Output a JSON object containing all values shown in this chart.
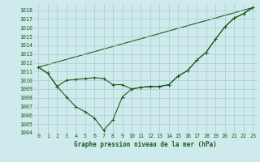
{
  "title": "Graphe pression niveau de la mer (hPa)",
  "background_color": "#ceeaec",
  "grid_color": "#a8ccce",
  "line_color": "#1a5c1a",
  "ylim": [
    1004,
    1018.8
  ],
  "xlim": [
    -0.5,
    23.5
  ],
  "yticks": [
    1004,
    1005,
    1006,
    1007,
    1008,
    1009,
    1010,
    1011,
    1012,
    1013,
    1014,
    1015,
    1016,
    1017,
    1018
  ],
  "xticks": [
    0,
    1,
    2,
    3,
    4,
    5,
    6,
    7,
    8,
    9,
    10,
    11,
    12,
    13,
    14,
    15,
    16,
    17,
    18,
    19,
    20,
    21,
    22,
    23
  ],
  "series1_x": [
    0,
    1,
    2,
    3,
    4,
    5,
    6,
    7,
    8,
    9,
    10,
    11,
    12,
    13,
    14,
    15,
    16,
    17,
    18,
    19,
    20,
    21,
    22,
    23
  ],
  "series1_y": [
    1011.5,
    1010.8,
    1009.3,
    1010.0,
    1010.1,
    1010.2,
    1010.3,
    1010.2,
    1009.5,
    1009.5,
    1009.0,
    1009.2,
    1009.3,
    1009.3,
    1009.5,
    1010.5,
    1011.1,
    1012.3,
    1013.2,
    1014.7,
    1016.1,
    1017.1,
    1017.6,
    1018.3
  ],
  "series2_x": [
    0,
    1,
    2,
    3,
    4,
    5,
    6,
    7,
    8,
    9,
    10,
    11,
    12,
    13,
    14,
    15,
    16,
    17,
    18,
    19,
    20,
    21,
    22,
    23
  ],
  "series2_y": [
    1011.5,
    1010.8,
    1009.3,
    1008.1,
    1007.0,
    1006.4,
    1005.7,
    1004.3,
    1005.5,
    1008.1,
    1009.0,
    1009.2,
    1009.3,
    1009.3,
    1009.5,
    1010.5,
    1011.1,
    1012.3,
    1013.2,
    1014.7,
    1016.1,
    1017.1,
    1017.6,
    1018.3
  ],
  "series3_x": [
    0,
    23
  ],
  "series3_y": [
    1011.5,
    1018.3
  ],
  "title_fontsize": 5.5,
  "tick_fontsize": 4.8
}
